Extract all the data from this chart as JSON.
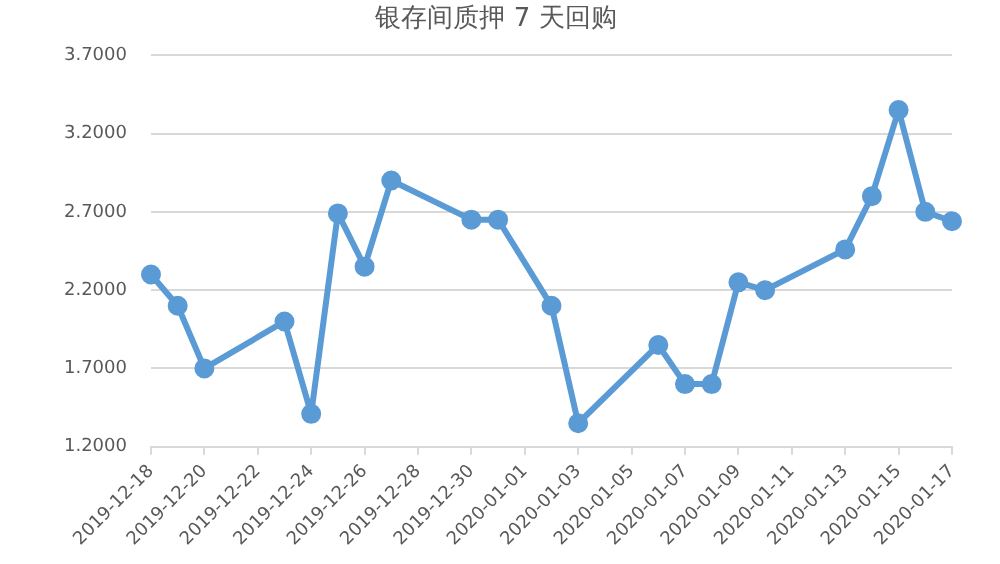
{
  "chart_data": {
    "type": "line",
    "title": "银存间质押 7 天回购",
    "x": [
      "2019-12-18",
      "2019-12-19",
      "2019-12-20",
      "2019-12-23",
      "2019-12-24",
      "2019-12-25",
      "2019-12-26",
      "2019-12-27",
      "2019-12-30",
      "2019-12-31",
      "2020-01-02",
      "2020-01-03",
      "2020-01-06",
      "2020-01-07",
      "2020-01-08",
      "2020-01-09",
      "2020-01-10",
      "2020-01-13",
      "2020-01-14",
      "2020-01-15",
      "2020-01-16",
      "2020-01-17"
    ],
    "series": [
      {
        "color": "#5b9bd5",
        "values": [
          2.3,
          2.1,
          1.7,
          2.0,
          1.41,
          2.69,
          2.35,
          2.9,
          2.65,
          2.65,
          2.1,
          1.35,
          1.85,
          1.6,
          1.6,
          2.25,
          2.2,
          2.46,
          2.8,
          3.35,
          2.7,
          2.64
        ]
      }
    ],
    "xlim": [
      "2019-12-18",
      "2020-01-17"
    ],
    "xticks": [
      "2019-12-18",
      "2019-12-20",
      "2019-12-22",
      "2019-12-24",
      "2019-12-26",
      "2019-12-28",
      "2019-12-30",
      "2020-01-01",
      "2020-01-03",
      "2020-01-05",
      "2020-01-07",
      "2020-01-09",
      "2020-01-11",
      "2020-01-13",
      "2020-01-15",
      "2020-01-17"
    ],
    "ylim": [
      1.2,
      3.7
    ],
    "yticks": [
      {
        "value": 1.2,
        "label": "1.2000"
      },
      {
        "value": 1.7,
        "label": "1.7000"
      },
      {
        "value": 2.2,
        "label": "2.2000"
      },
      {
        "value": 2.7,
        "label": "2.7000"
      },
      {
        "value": 3.2,
        "label": "3.2000"
      },
      {
        "value": 3.7,
        "label": "3.7000"
      }
    ],
    "grid": "y",
    "marker": "circle",
    "line_style": "solid",
    "legend": false
  }
}
